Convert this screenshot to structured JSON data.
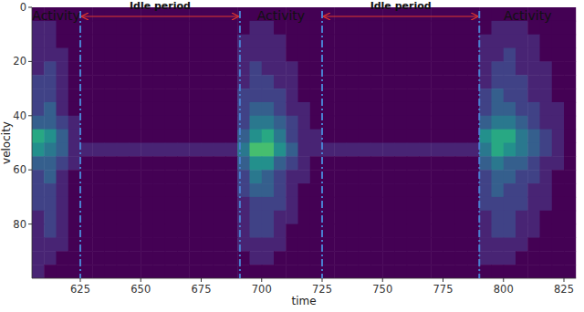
{
  "chart_data": {
    "type": "heatmap",
    "x_label": "time",
    "y_label": "velocity",
    "xlim": [
      605,
      830
    ],
    "ylim": [
      0,
      100
    ],
    "xticks": [
      625,
      650,
      675,
      700,
      725,
      750,
      775,
      800,
      825
    ],
    "yticks": [
      0,
      20,
      40,
      60,
      80
    ],
    "zlim": [
      0,
      10
    ],
    "cells": [
      [
        0,
        0,
        0,
        0,
        0,
        0,
        0,
        0,
        0,
        0,
        0,
        0,
        0,
        0,
        0,
        0,
        0,
        0,
        0,
        0,
        0,
        0,
        0,
        0,
        0,
        0,
        0,
        0,
        0,
        0,
        0,
        0,
        0,
        0,
        0,
        0,
        0,
        0,
        0,
        0,
        0,
        0,
        0,
        0,
        0
      ],
      [
        1,
        1,
        0,
        0,
        0,
        0,
        0,
        0,
        0,
        0,
        0,
        0,
        0,
        0,
        0,
        0,
        0,
        0,
        1,
        1,
        0,
        0,
        0,
        0,
        0,
        0,
        0,
        0,
        0,
        0,
        0,
        0,
        0,
        0,
        0,
        0,
        0,
        0,
        1,
        1,
        1,
        0,
        0,
        0,
        0
      ],
      [
        1,
        1,
        0,
        0,
        0,
        0,
        0,
        0,
        0,
        0,
        0,
        0,
        0,
        0,
        0,
        0,
        0,
        1,
        1,
        1,
        1,
        0,
        0,
        0,
        0,
        0,
        0,
        0,
        0,
        0,
        0,
        0,
        0,
        0,
        0,
        0,
        0,
        1,
        1,
        1,
        1,
        1,
        0,
        0,
        0
      ],
      [
        1,
        1,
        1,
        0,
        0,
        0,
        0,
        0,
        0,
        0,
        0,
        0,
        0,
        0,
        0,
        0,
        0,
        1,
        1,
        1,
        1,
        0,
        0,
        0,
        0,
        0,
        0,
        0,
        0,
        0,
        0,
        0,
        0,
        0,
        0,
        0,
        0,
        1,
        1,
        2,
        1,
        1,
        0,
        0,
        0
      ],
      [
        1,
        2,
        1,
        0,
        0,
        0,
        0,
        0,
        0,
        0,
        0,
        0,
        0,
        0,
        0,
        0,
        0,
        1,
        2,
        1,
        1,
        1,
        0,
        0,
        0,
        0,
        0,
        0,
        0,
        0,
        0,
        0,
        0,
        0,
        0,
        0,
        0,
        1,
        2,
        2,
        1,
        1,
        1,
        0,
        0
      ],
      [
        2,
        2,
        1,
        0,
        0,
        0,
        0,
        0,
        0,
        0,
        0,
        0,
        0,
        0,
        0,
        0,
        0,
        1,
        2,
        2,
        1,
        1,
        0,
        0,
        0,
        0,
        0,
        0,
        0,
        0,
        0,
        0,
        0,
        0,
        0,
        0,
        0,
        1,
        2,
        2,
        2,
        1,
        1,
        0,
        0
      ],
      [
        2,
        2,
        1,
        0,
        0,
        0,
        0,
        0,
        0,
        0,
        0,
        0,
        0,
        0,
        0,
        0,
        0,
        2,
        2,
        2,
        2,
        1,
        0,
        0,
        0,
        0,
        0,
        0,
        0,
        0,
        0,
        0,
        0,
        0,
        0,
        0,
        0,
        2,
        3,
        2,
        2,
        1,
        1,
        0,
        0
      ],
      [
        2,
        3,
        1,
        0,
        0,
        0,
        0,
        0,
        0,
        0,
        0,
        0,
        0,
        0,
        0,
        0,
        0,
        2,
        3,
        3,
        2,
        1,
        1,
        0,
        0,
        0,
        0,
        0,
        0,
        0,
        0,
        0,
        0,
        0,
        0,
        0,
        0,
        2,
        3,
        3,
        2,
        2,
        1,
        1,
        0
      ],
      [
        3,
        3,
        2,
        1,
        0,
        0,
        0,
        0,
        0,
        0,
        0,
        0,
        0,
        0,
        0,
        0,
        0,
        2,
        4,
        4,
        3,
        2,
        1,
        0,
        0,
        0,
        0,
        0,
        0,
        0,
        0,
        0,
        0,
        0,
        0,
        0,
        0,
        3,
        4,
        4,
        3,
        2,
        1,
        1,
        0
      ],
      [
        6,
        5,
        3,
        1,
        0,
        0,
        0,
        0,
        0,
        0,
        0,
        0,
        0,
        0,
        0,
        0,
        0,
        3,
        5,
        6,
        4,
        2,
        1,
        1,
        0,
        0,
        0,
        0,
        0,
        0,
        0,
        0,
        0,
        0,
        0,
        0,
        0,
        5,
        6,
        6,
        4,
        3,
        2,
        1,
        0
      ],
      [
        5,
        4,
        3,
        1,
        1,
        1,
        1,
        1,
        1,
        1,
        1,
        1,
        1,
        1,
        1,
        1,
        1,
        4,
        7,
        7,
        5,
        3,
        1,
        1,
        1,
        1,
        1,
        1,
        1,
        1,
        1,
        1,
        1,
        1,
        1,
        1,
        1,
        4,
        6,
        5,
        4,
        3,
        2,
        1,
        0
      ],
      [
        3,
        3,
        2,
        1,
        0,
        0,
        0,
        0,
        0,
        0,
        0,
        0,
        0,
        0,
        0,
        0,
        0,
        3,
        5,
        5,
        3,
        2,
        1,
        0,
        0,
        0,
        0,
        0,
        0,
        0,
        0,
        0,
        0,
        0,
        0,
        0,
        0,
        3,
        4,
        3,
        3,
        2,
        1,
        1,
        0
      ],
      [
        2,
        3,
        1,
        0,
        0,
        0,
        0,
        0,
        0,
        0,
        0,
        0,
        0,
        0,
        0,
        0,
        0,
        2,
        4,
        3,
        2,
        1,
        1,
        0,
        0,
        0,
        0,
        0,
        0,
        0,
        0,
        0,
        0,
        0,
        0,
        0,
        0,
        2,
        3,
        3,
        2,
        2,
        1,
        0,
        0
      ],
      [
        2,
        2,
        1,
        0,
        0,
        0,
        0,
        0,
        0,
        0,
        0,
        0,
        0,
        0,
        0,
        0,
        0,
        2,
        3,
        3,
        2,
        1,
        0,
        0,
        0,
        0,
        0,
        0,
        0,
        0,
        0,
        0,
        0,
        0,
        0,
        0,
        0,
        2,
        3,
        2,
        2,
        1,
        1,
        0,
        0
      ],
      [
        2,
        2,
        1,
        0,
        0,
        0,
        0,
        0,
        0,
        0,
        0,
        0,
        0,
        0,
        0,
        0,
        0,
        1,
        2,
        2,
        2,
        1,
        0,
        0,
        0,
        0,
        0,
        0,
        0,
        0,
        0,
        0,
        0,
        0,
        0,
        0,
        0,
        2,
        2,
        2,
        2,
        1,
        1,
        0,
        0
      ],
      [
        1,
        2,
        1,
        0,
        0,
        0,
        0,
        0,
        0,
        0,
        0,
        0,
        0,
        0,
        0,
        0,
        0,
        1,
        2,
        2,
        1,
        1,
        0,
        0,
        0,
        0,
        0,
        0,
        0,
        0,
        0,
        0,
        0,
        0,
        0,
        0,
        0,
        1,
        2,
        2,
        1,
        1,
        0,
        0,
        0
      ],
      [
        1,
        2,
        1,
        0,
        0,
        0,
        0,
        0,
        0,
        0,
        0,
        0,
        0,
        0,
        0,
        0,
        0,
        1,
        2,
        2,
        1,
        0,
        0,
        0,
        0,
        0,
        0,
        0,
        0,
        0,
        0,
        0,
        0,
        0,
        0,
        0,
        0,
        1,
        2,
        2,
        1,
        1,
        0,
        0,
        0
      ],
      [
        1,
        1,
        1,
        0,
        0,
        0,
        0,
        0,
        0,
        0,
        0,
        0,
        0,
        0,
        0,
        0,
        0,
        1,
        1,
        1,
        1,
        0,
        0,
        0,
        0,
        0,
        0,
        0,
        0,
        0,
        0,
        0,
        0,
        0,
        0,
        0,
        0,
        1,
        1,
        1,
        1,
        0,
        0,
        0,
        0
      ],
      [
        1,
        1,
        0,
        0,
        0,
        0,
        0,
        0,
        0,
        0,
        0,
        0,
        0,
        0,
        0,
        0,
        0,
        0,
        1,
        1,
        0,
        0,
        0,
        0,
        0,
        0,
        0,
        0,
        0,
        0,
        0,
        0,
        0,
        0,
        0,
        0,
        0,
        1,
        1,
        1,
        0,
        0,
        0,
        0,
        0
      ],
      [
        1,
        0,
        0,
        0,
        0,
        0,
        0,
        0,
        0,
        0,
        0,
        0,
        0,
        0,
        0,
        0,
        0,
        0,
        0,
        0,
        0,
        0,
        0,
        0,
        0,
        0,
        0,
        0,
        0,
        0,
        0,
        0,
        0,
        0,
        0,
        0,
        0,
        0,
        0,
        0,
        0,
        0,
        0,
        0,
        0
      ]
    ],
    "periods": [
      {
        "label": "Activity",
        "start": 605,
        "end": 625
      },
      {
        "label": "Idle period",
        "start": 625,
        "end": 691,
        "line_style": "arrow",
        "color": "#e0382e"
      },
      {
        "label": "Activity",
        "start": 691,
        "end": 725
      },
      {
        "label": "Idle period",
        "start": 725,
        "end": 790,
        "line_style": "arrow",
        "color": "#e0382e"
      },
      {
        "label": "Activity",
        "start": 790,
        "end": 830
      }
    ]
  }
}
